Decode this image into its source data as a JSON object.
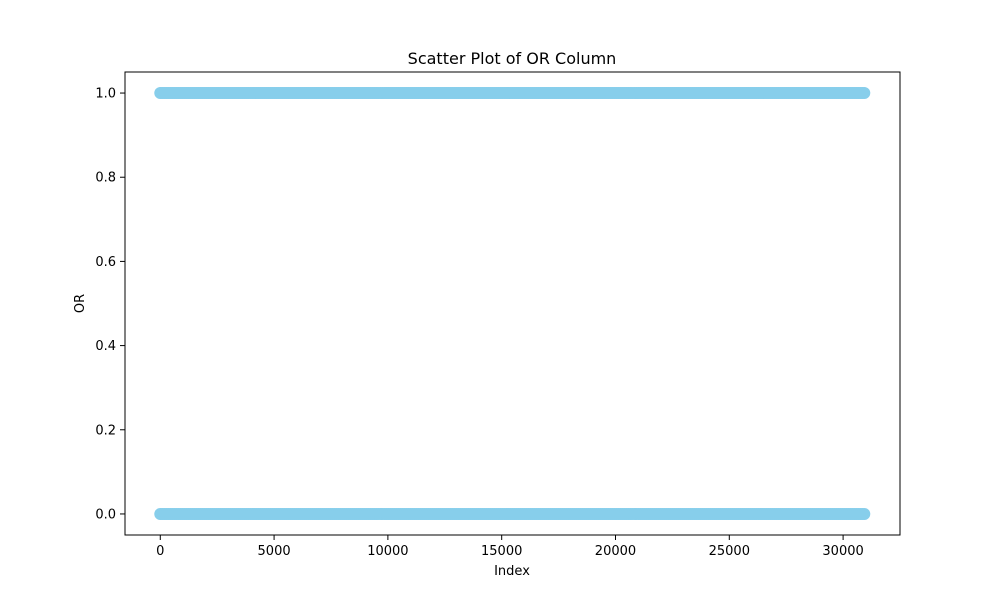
{
  "chart_data": {
    "type": "scatter",
    "title": "Scatter Plot of OR Column",
    "xlabel": "Index",
    "ylabel": "OR",
    "xlim": [
      -1550,
      32500
    ],
    "ylim": [
      -0.05,
      1.05
    ],
    "xticks": [
      0,
      5000,
      10000,
      15000,
      20000,
      25000,
      30000
    ],
    "xtick_labels": [
      "0",
      "5000",
      "10000",
      "15000",
      "20000",
      "25000",
      "30000"
    ],
    "yticks": [
      0.0,
      0.2,
      0.4,
      0.6,
      0.8,
      1.0
    ],
    "ytick_labels": [
      "0.0",
      "0.2",
      "0.4",
      "0.6",
      "0.8",
      "1.0"
    ],
    "grid": false,
    "legend": "none",
    "color": "#87ceeb",
    "series": [
      {
        "x_range": [
          0,
          30950
        ],
        "y_values": [
          0,
          1
        ]
      }
    ]
  }
}
